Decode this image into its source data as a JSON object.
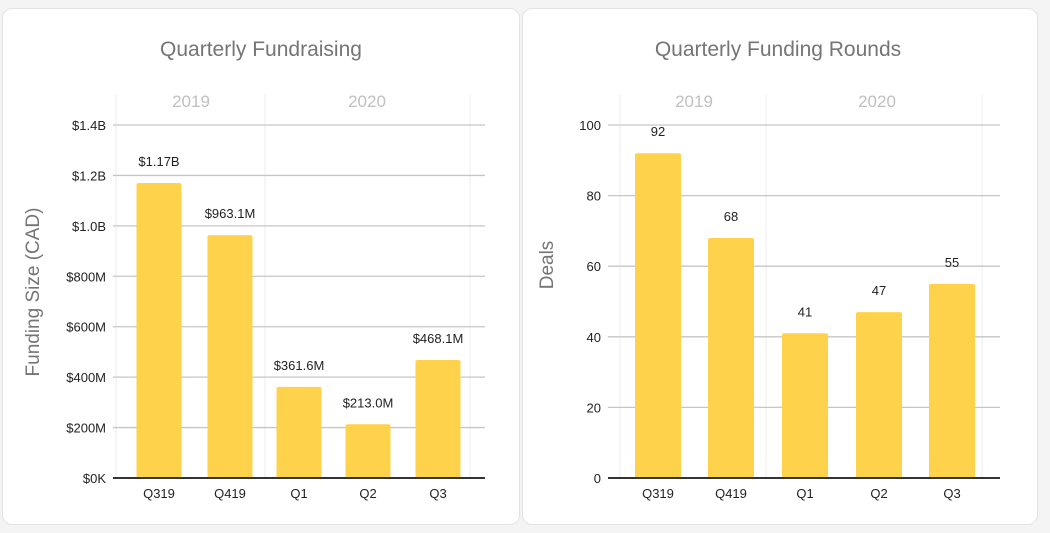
{
  "chart_data": [
    {
      "type": "bar",
      "title": "Quarterly Fundraising",
      "group_labels": [
        "2019",
        "2020"
      ],
      "categories": [
        "Q319",
        "Q419",
        "Q1",
        "Q2",
        "Q3"
      ],
      "values": [
        1170,
        963.1,
        361.6,
        213.0,
        468.1
      ],
      "value_unit": "millions CAD",
      "data_labels": [
        "$1.17B",
        "$963.1M",
        "$361.6M",
        "$213.0M",
        "$468.1M"
      ],
      "xlabel": "",
      "ylabel": "Funding Size (CAD)",
      "ylim": [
        0,
        1400
      ],
      "yticks": [
        0,
        200,
        400,
        600,
        800,
        1000,
        1200,
        1400
      ],
      "ytick_labels": [
        "$0K",
        "$200M",
        "$400M",
        "$600M",
        "$800M",
        "$1.0B",
        "$1.2B",
        "$1.4B"
      ],
      "grid": true,
      "color": "#FFD24C"
    },
    {
      "type": "bar",
      "title": "Quarterly Funding Rounds",
      "group_labels": [
        "2019",
        "2020"
      ],
      "categories": [
        "Q319",
        "Q419",
        "Q1",
        "Q2",
        "Q3"
      ],
      "values": [
        92,
        68,
        41,
        47,
        55
      ],
      "data_labels": [
        "92",
        "68",
        "41",
        "47",
        "55"
      ],
      "xlabel": "",
      "ylabel": "Deals",
      "ylim": [
        0,
        100
      ],
      "yticks": [
        0,
        20,
        40,
        60,
        80,
        100
      ],
      "ytick_labels": [
        "0",
        "20",
        "40",
        "60",
        "80",
        "100"
      ],
      "grid": true,
      "color": "#FFD24C"
    }
  ]
}
